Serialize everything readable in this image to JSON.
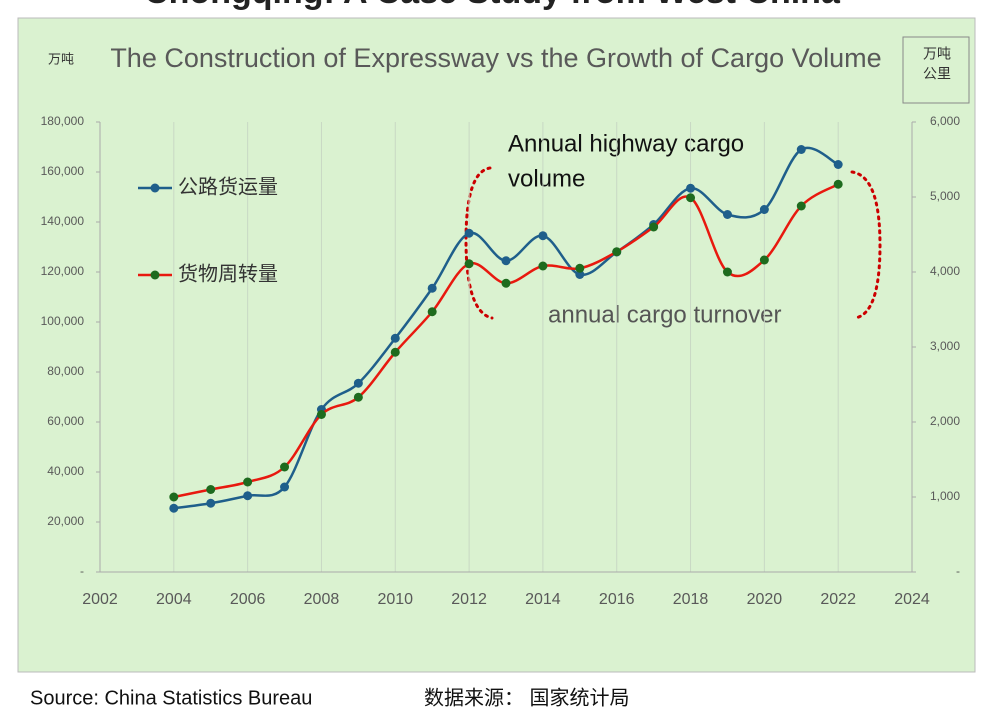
{
  "page_title": "Chongqing: A Case Study from West China",
  "chart_data": {
    "type": "line",
    "title": "The Construction of Expressway vs the Growth of Cargo Volume",
    "y_unit": "万吨",
    "y2_unit": [
      "万吨",
      "公里"
    ],
    "x": [
      2004,
      2005,
      2006,
      2007,
      2008,
      2009,
      2010,
      2011,
      2012,
      2013,
      2014,
      2015,
      2016,
      2017,
      2018,
      2019,
      2020,
      2021,
      2022
    ],
    "series": [
      {
        "name": "公路货运量",
        "color": "#1f5f8b",
        "values": [
          25500,
          27500,
          30500,
          34000,
          65000,
          75500,
          93500,
          113500,
          135500,
          124500,
          134500,
          119000,
          128000,
          139000,
          153500,
          143000,
          145000,
          169000,
          163000
        ]
      },
      {
        "name": "货物周转量",
        "color": "#e8190f",
        "axis": "y2",
        "values": [
          1000,
          1100,
          1200,
          1400,
          2100,
          2330,
          2930,
          3470,
          4110,
          3850,
          4080,
          4050,
          4270,
          4600,
          4990,
          4000,
          4160,
          4880,
          5170
        ]
      }
    ],
    "xlim": [
      2002,
      2024
    ],
    "xticks": [
      2002,
      2004,
      2006,
      2008,
      2010,
      2012,
      2014,
      2016,
      2018,
      2020,
      2022,
      2024
    ],
    "ylim": [
      0,
      180000
    ],
    "yticks": [
      {
        "value": 0,
        "label": "-"
      },
      {
        "value": 20000,
        "label": "20,000"
      },
      {
        "value": 40000,
        "label": "40,000"
      },
      {
        "value": 60000,
        "label": "60,000"
      },
      {
        "value": 80000,
        "label": "80,000"
      },
      {
        "value": 100000,
        "label": "100,000"
      },
      {
        "value": 120000,
        "label": "120,000"
      },
      {
        "value": 140000,
        "label": "140,000"
      },
      {
        "value": 160000,
        "label": "160,000"
      },
      {
        "value": 180000,
        "label": "180,000"
      }
    ],
    "y2lim": [
      0,
      6000
    ],
    "y2ticks": [
      {
        "value": 0,
        "label": "-"
      },
      {
        "value": 1000,
        "label": "1,000"
      },
      {
        "value": 2000,
        "label": "2,000"
      },
      {
        "value": 3000,
        "label": "3,000"
      },
      {
        "value": 4000,
        "label": "4,000"
      },
      {
        "value": 5000,
        "label": "5,000"
      },
      {
        "value": 6000,
        "label": "6,000"
      }
    ],
    "grid": true,
    "annotations": [
      [
        "Annual highway cargo",
        "volume"
      ],
      "annual cargo turnover"
    ]
  },
  "source": "Source: China Statistics Bureau",
  "source_cn": "数据来源：  国家统计局"
}
